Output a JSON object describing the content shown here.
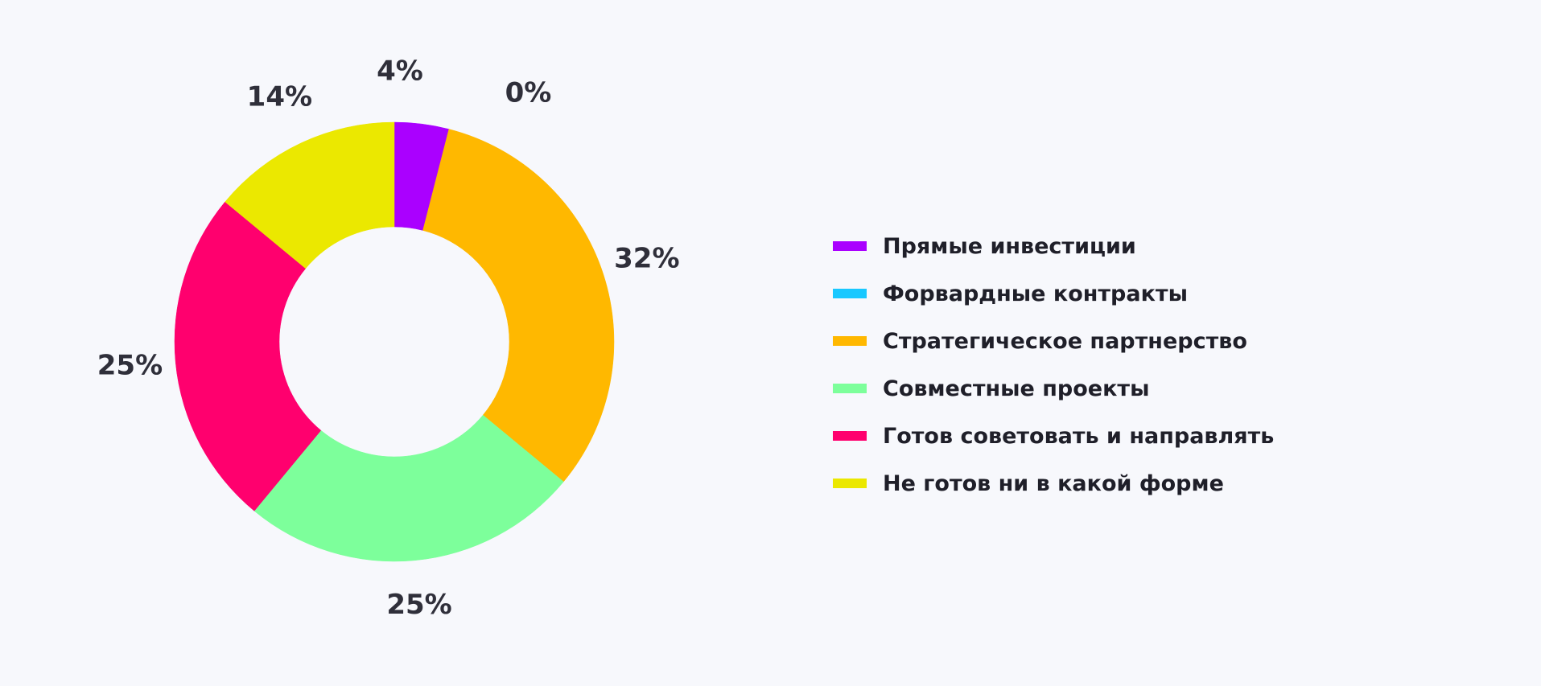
{
  "chart_data": {
    "type": "pie",
    "subtype": "donut",
    "title": "",
    "categories": [
      "Прямые инвестиции",
      "Форвардные контракты",
      "Стратегическое партнерство",
      "Совместные проекты",
      "Готов советовать и направлять",
      "Не готов ни в какой форме"
    ],
    "values": [
      4,
      0,
      32,
      25,
      25,
      14
    ],
    "value_labels": [
      "4%",
      "0%",
      "32%",
      "25%",
      "25%",
      "14%"
    ],
    "colors": [
      "#aa00ff",
      "#18c8ff",
      "#ffb800",
      "#7dff9b",
      "#ff006e",
      "#ebe800"
    ],
    "legend_position": "right"
  }
}
